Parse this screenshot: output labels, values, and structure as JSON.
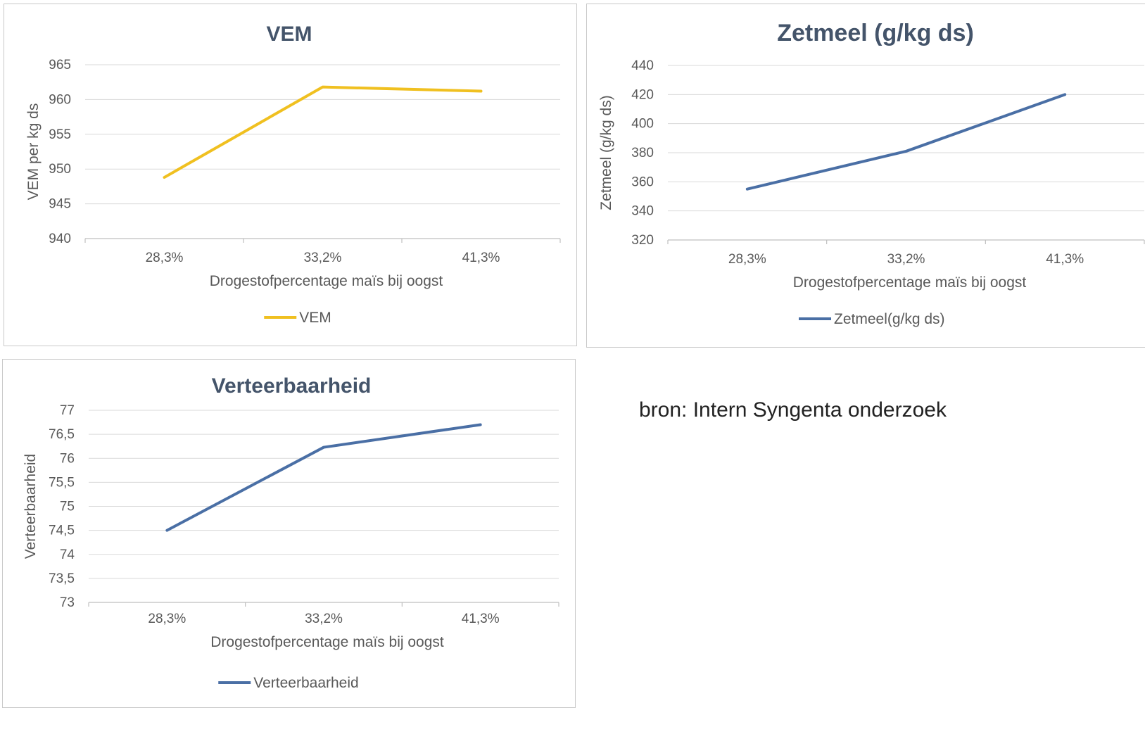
{
  "chart_data": [
    {
      "type": "line",
      "title": "VEM",
      "xlabel": "Drogestofpercentage maïs bij oogst",
      "ylabel": "VEM per kg ds",
      "categories": [
        "28,3%",
        "33,2%",
        "41,3%"
      ],
      "y_ticks": [
        "940",
        "945",
        "950",
        "955",
        "960",
        "965"
      ],
      "ylim": [
        940,
        965
      ],
      "series": [
        {
          "name": "VEM",
          "values": [
            948.8,
            961.8,
            961.2
          ],
          "color": "#f0c020"
        }
      ],
      "legend": "bottom",
      "grid": true
    },
    {
      "type": "line",
      "title": "Zetmeel (g/kg ds)",
      "xlabel": "Drogestofpercentage maïs bij oogst",
      "ylabel": "Zetmeel (g/kg ds)",
      "categories": [
        "28,3%",
        "33,2%",
        "41,3%"
      ],
      "y_ticks": [
        "320",
        "340",
        "360",
        "380",
        "400",
        "420",
        "440"
      ],
      "ylim": [
        320,
        440
      ],
      "series": [
        {
          "name": "Zetmeel(g/kg ds)",
          "values": [
            355,
            381,
            420
          ],
          "color": "#4a6fa5"
        }
      ],
      "legend": "bottom",
      "grid": true
    },
    {
      "type": "line",
      "title": "Verteerbaarheid",
      "xlabel": "Drogestofpercentage maïs bij oogst",
      "ylabel": "Verteerbaarheid",
      "categories": [
        "28,3%",
        "33,2%",
        "41,3%"
      ],
      "y_ticks": [
        "73",
        "73,5",
        "74",
        "74,5",
        "75",
        "75,5",
        "76",
        "76,5",
        "77"
      ],
      "ylim": [
        73,
        77
      ],
      "series": [
        {
          "name": "Verteerbaarheid",
          "values": [
            74.5,
            76.23,
            76.7
          ],
          "color": "#4a6fa5"
        }
      ],
      "legend": "bottom",
      "grid": true
    }
  ],
  "source_note": "bron: Intern Syngenta onderzoek"
}
